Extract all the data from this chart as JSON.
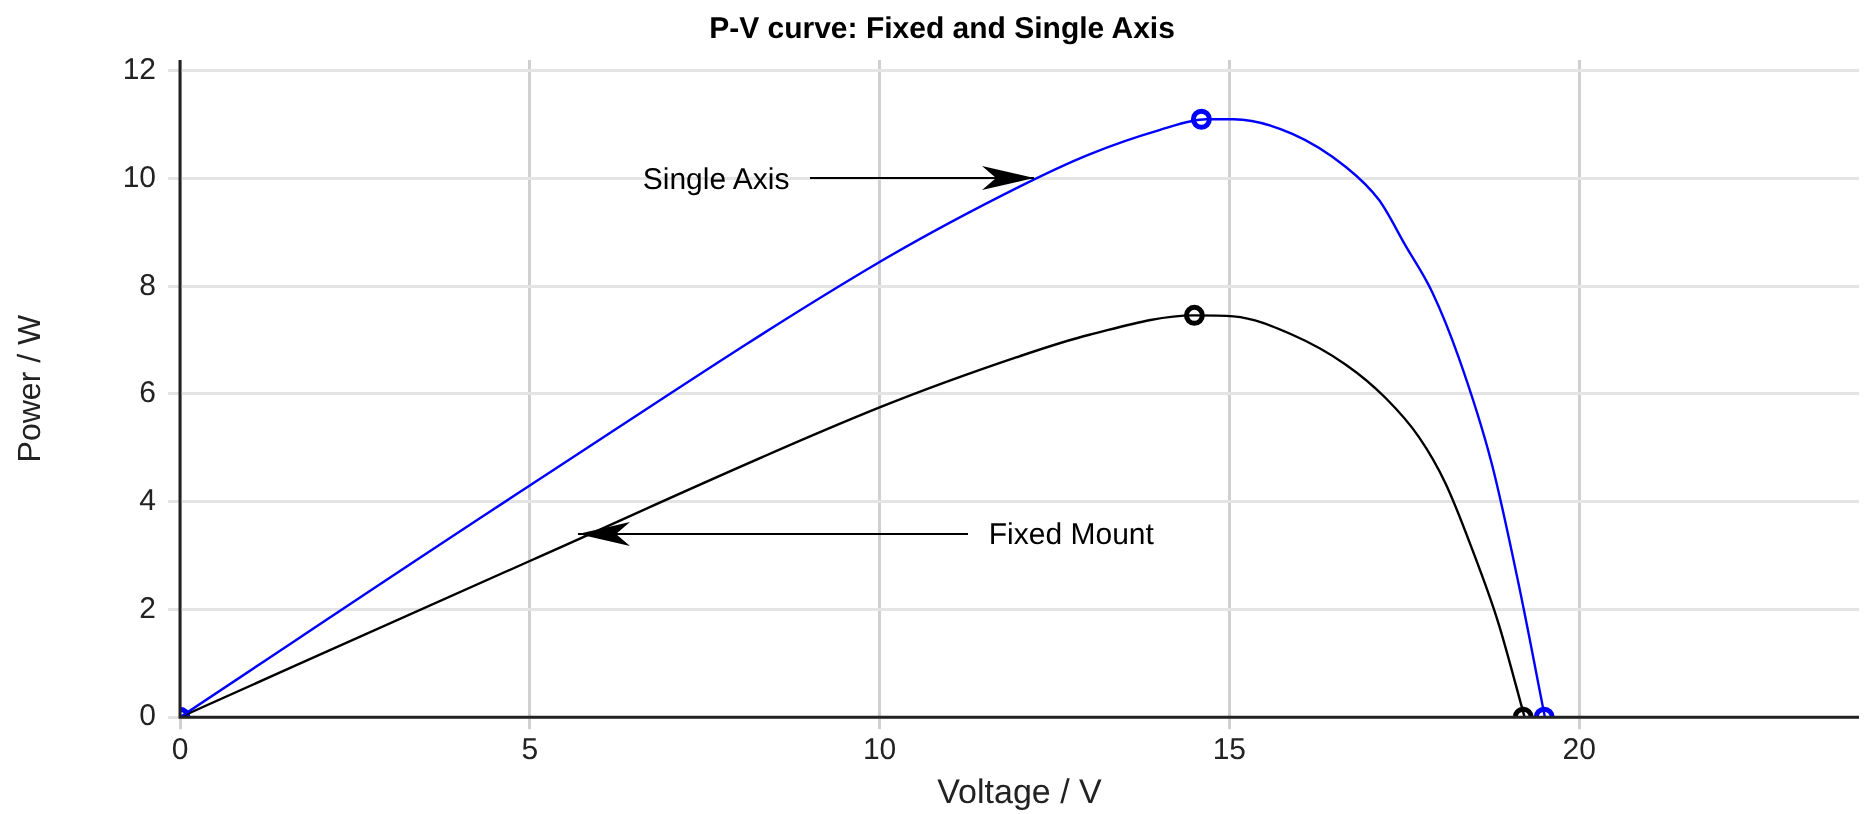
{
  "chart_data": {
    "type": "line",
    "title": "P-V curve: Fixed and Single Axis",
    "xlabel": "Voltage / V",
    "ylabel": "Power / W",
    "xlim": [
      0,
      24
    ],
    "xticks": [
      0,
      5,
      10,
      15,
      20
    ],
    "ylim": [
      0,
      12.2
    ],
    "yticks": [
      0,
      2,
      4,
      6,
      8,
      10,
      12
    ],
    "grid": true,
    "legend": false,
    "marker": "none",
    "line_style": "solid",
    "series": [
      {
        "color": "#0000ff",
        "x": [
          0,
          5,
          10,
          12,
          13,
          14,
          14.67,
          15.06,
          15.9,
          16.67,
          17.14,
          17.52,
          17.9,
          18.28,
          18.75,
          19.13,
          19.51
        ],
        "values": [
          0,
          4.3,
          8.45,
          9.85,
          10.45,
          10.9,
          11.1,
          11.1,
          10.83,
          10.21,
          9.6,
          8.75,
          7.89,
          6.67,
          4.71,
          2.5,
          0
        ]
      },
      {
        "color": "#000000",
        "x": [
          0,
          5,
          10,
          12,
          13,
          14.49,
          15.06,
          15.9,
          16.67,
          17.23,
          17.71,
          18.09,
          18.47,
          18.84,
          19.22
        ],
        "values": [
          0,
          2.9,
          5.75,
          6.7,
          7.1,
          7.46,
          7.44,
          7.1,
          6.54,
          5.93,
          5.2,
          4.34,
          3.12,
          1.77,
          0
        ]
      },
      {
        "type": "scatter",
        "marker": "circle",
        "color": "#0000ff",
        "x": [
          0,
          14.6,
          19.5
        ],
        "values": [
          0,
          11.1,
          0
        ]
      },
      {
        "type": "scatter",
        "marker": "circle",
        "color": "#000000",
        "x": [
          14.5,
          19.2
        ],
        "values": [
          7.46,
          0
        ]
      }
    ],
    "annotations": [
      {
        "text": "Single Axis",
        "x": 12.2,
        "y": 10.0
      },
      {
        "text": "Fixed Mount",
        "x": 5.7,
        "y": 3.4
      }
    ]
  }
}
